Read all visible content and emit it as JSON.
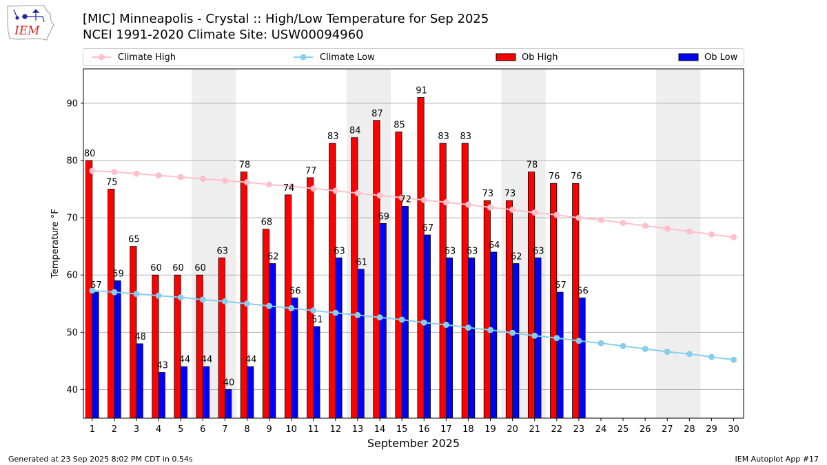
{
  "title_line1": "[MIC] Minneapolis - Crystal :: High/Low Temperature for Sep 2025",
  "title_line2": "NCEI 1991-2020 Climate Site: USW00094960",
  "logo_text": "IEM",
  "footer_left": "Generated at 23 Sep 2025 8:02 PM CDT in 0.54s",
  "footer_right": "IEM Autoplot App #17",
  "legend": [
    {
      "label": "Climate High",
      "kind": "line",
      "color": "#ffc0cb"
    },
    {
      "label": "Climate Low",
      "kind": "line",
      "color": "#87ceeb"
    },
    {
      "label": "Ob High",
      "kind": "bar",
      "color": "#ff0000"
    },
    {
      "label": "Ob Low",
      "kind": "bar",
      "color": "#0000ff"
    }
  ],
  "chart_data": {
    "type": "bar",
    "xlabel": "September 2025",
    "ylabel": "Temperature °F",
    "ylim": [
      35,
      96
    ],
    "yticks": [
      40,
      50,
      60,
      70,
      80,
      90
    ],
    "grid": "horizontal",
    "legend_position": "top",
    "x": [
      1,
      2,
      3,
      4,
      5,
      6,
      7,
      8,
      9,
      10,
      11,
      12,
      13,
      14,
      15,
      16,
      17,
      18,
      19,
      20,
      21,
      22,
      23,
      24,
      25,
      26,
      27,
      28,
      29,
      30
    ],
    "weekend_shading": [
      [
        6,
        7
      ],
      [
        13,
        14
      ],
      [
        20,
        21
      ],
      [
        27,
        28
      ]
    ],
    "series": [
      {
        "name": "Ob High",
        "type": "bar",
        "color": "#ff0000",
        "values": [
          80,
          75,
          65,
          60,
          60,
          60,
          63,
          78,
          68,
          74,
          77,
          83,
          84,
          87,
          85,
          91,
          83,
          83,
          73,
          73,
          78,
          76,
          76,
          null,
          null,
          null,
          null,
          null,
          null,
          null
        ]
      },
      {
        "name": "Ob Low",
        "type": "bar",
        "color": "#0000ff",
        "values": [
          57,
          59,
          48,
          43,
          44,
          44,
          40,
          44,
          62,
          56,
          51,
          63,
          61,
          69,
          72,
          67,
          63,
          63,
          64,
          62,
          63,
          57,
          56,
          null,
          null,
          null,
          null,
          null,
          null,
          null
        ]
      },
      {
        "name": "Climate High",
        "type": "line",
        "color": "#ffc0cb",
        "values": [
          78.2,
          78.0,
          77.7,
          77.4,
          77.1,
          76.8,
          76.5,
          76.2,
          75.8,
          75.5,
          75.1,
          74.7,
          74.3,
          73.9,
          73.5,
          73.1,
          72.7,
          72.3,
          71.8,
          71.4,
          70.9,
          70.5,
          70.0,
          69.6,
          69.1,
          68.6,
          68.1,
          67.6,
          67.1,
          66.6
        ]
      },
      {
        "name": "Climate Low",
        "type": "line",
        "color": "#87ceeb",
        "values": [
          57.3,
          57.0,
          56.7,
          56.4,
          56.1,
          55.7,
          55.4,
          55.0,
          54.6,
          54.2,
          53.8,
          53.4,
          53.0,
          52.6,
          52.2,
          51.7,
          51.3,
          50.8,
          50.4,
          49.9,
          49.4,
          49.0,
          48.5,
          48.1,
          47.6,
          47.1,
          46.6,
          46.2,
          45.7,
          45.2
        ]
      }
    ]
  }
}
